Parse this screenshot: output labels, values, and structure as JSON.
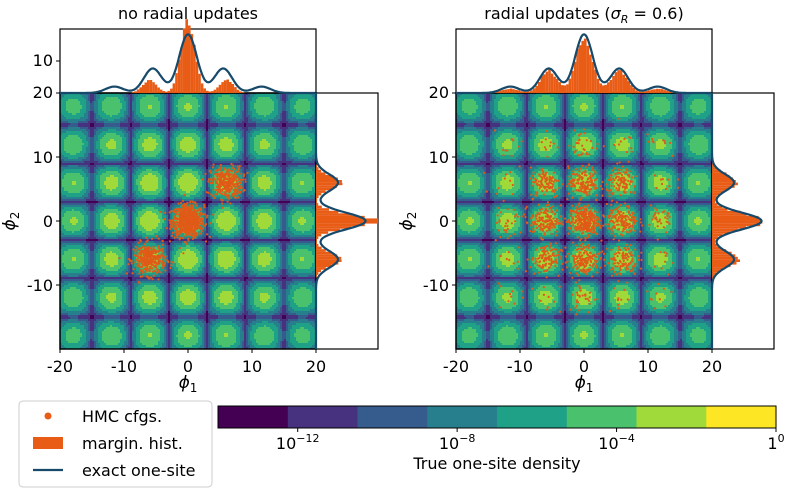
{
  "chart_data": [
    {
      "type": "heatmap",
      "title": "no radial updates",
      "xlabel": "φ1",
      "ylabel": "φ2",
      "x_ticks": [
        "-20",
        "-10",
        "0",
        "10",
        "20"
      ],
      "y_ticks": [
        "-10",
        "0",
        "10",
        "20"
      ],
      "xlim": [
        -20,
        20
      ],
      "ylim": [
        -20,
        20
      ],
      "sampled_modes": [
        [
          0,
          0
        ],
        [
          6,
          6
        ],
        [
          -6,
          -6
        ]
      ],
      "marginal_top": {
        "hist_peaks": [
          [
            -6,
            2
          ],
          [
            0,
            30
          ],
          [
            6,
            3
          ]
        ],
        "exact_peaks": [
          [
            -10,
            3
          ],
          [
            -5.5,
            11
          ],
          [
            0,
            27.5
          ],
          [
            5.5,
            11
          ],
          [
            10,
            3
          ]
        ]
      },
      "marginal_right": {
        "hist_peaks": [
          [
            -6,
            2
          ],
          [
            0,
            4
          ],
          [
            6,
            1
          ]
        ],
        "exact_peaks": [
          [
            -6,
            2
          ],
          [
            0,
            4
          ],
          [
            6,
            2
          ]
        ]
      }
    },
    {
      "type": "heatmap",
      "title": "radial updates (σR = 0.6)",
      "xlabel": "φ1",
      "ylabel": "φ2",
      "x_ticks": [
        "-20",
        "-10",
        "0",
        "10",
        "20"
      ],
      "y_ticks": [
        "-10",
        "0",
        "10",
        "20"
      ],
      "xlim": [
        -20,
        20
      ],
      "ylim": [
        -20,
        20
      ],
      "sampled_modes": "all lattice modes at φ ∈ {-12,-6,0,6,12}",
      "marginal_top": {
        "hist_peaks": [
          [
            -11,
            1
          ],
          [
            -6,
            8
          ],
          [
            0,
            26
          ],
          [
            6,
            8
          ],
          [
            11,
            1
          ]
        ],
        "exact_peaks": [
          [
            -10,
            3
          ],
          [
            -5.5,
            11
          ],
          [
            0,
            27.5
          ],
          [
            5.5,
            11
          ],
          [
            10,
            3
          ]
        ]
      },
      "marginal_right": {
        "hist_peaks": [
          [
            -6,
            3
          ],
          [
            0,
            4
          ],
          [
            6,
            3
          ]
        ],
        "exact_peaks": [
          [
            -6,
            3
          ],
          [
            0,
            4
          ],
          [
            6,
            3
          ]
        ]
      }
    }
  ],
  "marginal_tick_labels": [
    "20",
    "10"
  ],
  "colorbar": {
    "label": "True one-site density",
    "tick_bases": [
      "10",
      "10",
      "10",
      "1"
    ],
    "tick_exps": [
      "−12",
      "−8",
      "−4",
      "0"
    ],
    "colors": [
      "#440154",
      "#46327e",
      "#365c8d",
      "#277f8e",
      "#1fa187",
      "#4ac16d",
      "#9fda3a",
      "#fde725"
    ],
    "scale": "log",
    "range": [
      "1e-14",
      "1"
    ]
  },
  "legend": {
    "items": [
      {
        "label": "HMC cfgs.",
        "kind": "dot",
        "color": "#e85c16"
      },
      {
        "label": "margin. hist.",
        "kind": "bar",
        "color": "#e85c16"
      },
      {
        "label": "exact one-site",
        "kind": "line",
        "color": "#1b4a6b"
      }
    ]
  },
  "colors": {
    "sample": "#e05a18",
    "hist": "#e85c16",
    "exact_line": "#174a6a"
  }
}
